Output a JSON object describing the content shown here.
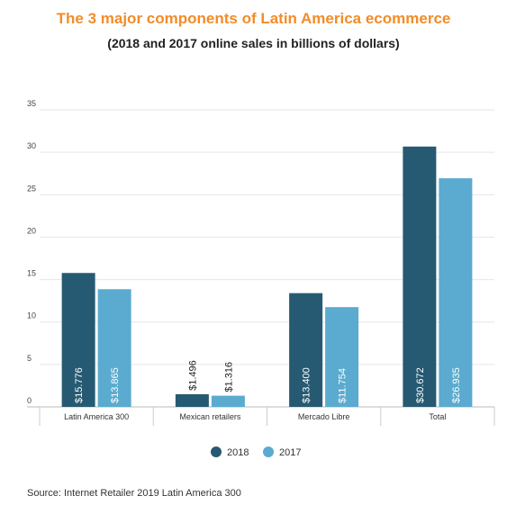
{
  "chart_data": {
    "type": "bar",
    "title": "The 3 major components of Latin America ecommerce",
    "subtitle": "(2018 and 2017 online sales in billions of dollars)",
    "categories": [
      "Latin America 300",
      "Mexican retailers",
      "Mercado Libre",
      "Total"
    ],
    "series": [
      {
        "name": "2018",
        "color": "#265a72",
        "values": [
          15.776,
          1.496,
          13.4,
          30.672
        ],
        "labels": [
          "$15.776",
          "$1.496",
          "$13.400",
          "$30.672"
        ]
      },
      {
        "name": "2017",
        "color": "#5aabcf",
        "values": [
          13.865,
          1.316,
          11.754,
          26.935
        ],
        "labels": [
          "$13.865",
          "$1.316",
          "$11.754",
          "$26.935"
        ]
      }
    ],
    "ylim": [
      0,
      35
    ],
    "yticks": [
      "0",
      "5",
      "10",
      "15",
      "20",
      "25",
      "30",
      "35"
    ],
    "grid": true,
    "legend_position": "bottom-center",
    "source": "Source: Internet Retailer 2019 Latin America 300"
  }
}
